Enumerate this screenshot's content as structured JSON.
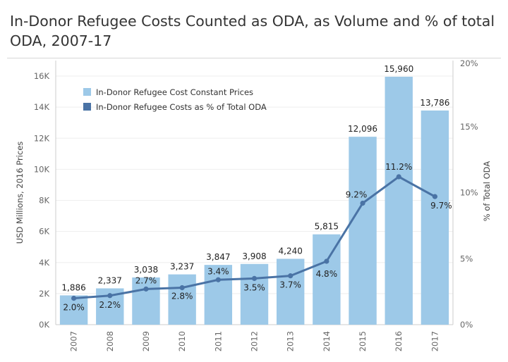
{
  "title": "In-Donor Refugee Costs Counted as ODA, as Volume and % of total ODA, 2007-17",
  "chart_data": {
    "type": "bar",
    "categories": [
      "2007",
      "2008",
      "2009",
      "2010",
      "2011",
      "2012",
      "2013",
      "2014",
      "2015",
      "2016",
      "2017"
    ],
    "series": [
      {
        "name": "In-Donor Refugee Cost Constant Prices",
        "type": "bar",
        "axis": "left",
        "color": "#9dc9e8",
        "values": [
          1886,
          2337,
          3038,
          3237,
          3847,
          3908,
          4240,
          5815,
          12096,
          15960,
          13786
        ],
        "labels": [
          "1,886",
          "2,337",
          "3,038",
          "3,237",
          "3,847",
          "3,908",
          "4,240",
          "5,815",
          "12,096",
          "15,960",
          "13,786"
        ]
      },
      {
        "name": "In-Donor Refugee Costs as % of Total ODA",
        "type": "line",
        "axis": "right",
        "color": "#4a73a5",
        "values": [
          2.0,
          2.2,
          2.7,
          2.8,
          3.4,
          3.5,
          3.7,
          4.8,
          9.2,
          11.2,
          9.7
        ],
        "labels": [
          "2.0%",
          "2.2%",
          "2.7%",
          "2.8%",
          "3.4%",
          "3.5%",
          "3.7%",
          "4.8%",
          "9.2%",
          "11.2%",
          "9.7%"
        ]
      }
    ],
    "ylabel": "USD Millions, 2016 Prices",
    "y2label": "% of Total ODA",
    "ylim": [
      0,
      17000
    ],
    "y2lim": [
      0,
      20
    ],
    "yticks": [
      0,
      2000,
      4000,
      6000,
      8000,
      10000,
      12000,
      14000,
      16000
    ],
    "ytick_labels": [
      "0K",
      "2K",
      "4K",
      "6K",
      "8K",
      "10K",
      "12K",
      "14K",
      "16K"
    ],
    "y2ticks": [
      0,
      5,
      10,
      15,
      20
    ],
    "y2tick_labels": [
      "0%",
      "5%",
      "10%",
      "15%",
      "20%"
    ],
    "grid": true,
    "legend_position": "top-left"
  }
}
